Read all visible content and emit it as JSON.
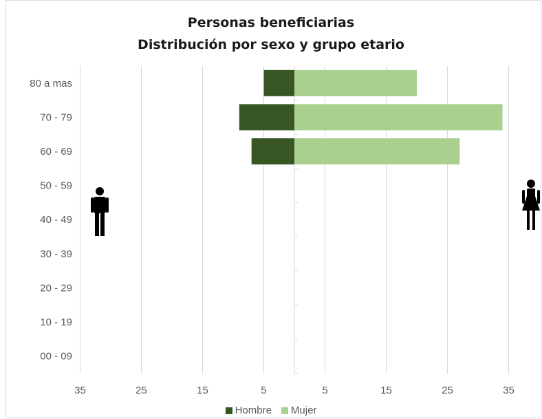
{
  "chart_data": {
    "type": "bar",
    "orientation": "horizontal",
    "title": "Personas beneficiarias",
    "subtitle": "Distribución por sexo y grupo etario",
    "categories": [
      "80 a mas",
      "70 - 79",
      "60 - 69",
      "50 - 59",
      "40 - 49",
      "30 - 39",
      "20 - 29",
      "10 - 19",
      "00 - 09"
    ],
    "series": [
      {
        "name": "Hombre",
        "color": "#375623",
        "values": [
          5,
          9,
          7,
          0,
          0,
          0,
          0,
          0,
          0
        ]
      },
      {
        "name": "Mujer",
        "color": "#a9d08e",
        "values": [
          20,
          34,
          27,
          0,
          0,
          0,
          0,
          0,
          0
        ]
      }
    ],
    "x_tick_labels": [
      "35",
      "25",
      "15",
      "5",
      "5",
      "15",
      "25",
      "35"
    ],
    "xlim": [
      -35,
      35
    ],
    "grid": true,
    "legend_position": "bottom",
    "icons": {
      "left": "man-icon",
      "right": "woman-icon"
    }
  }
}
